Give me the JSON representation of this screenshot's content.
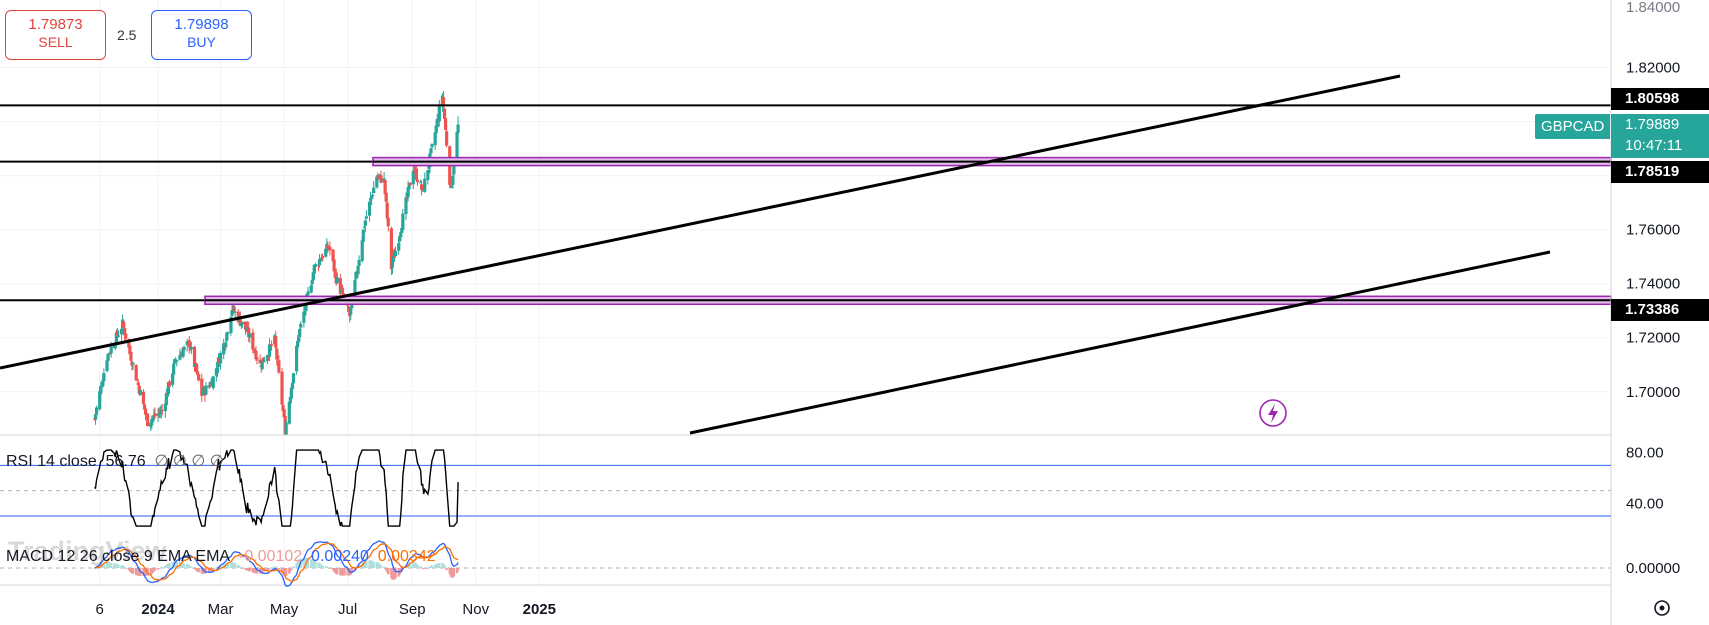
{
  "trade_panel": {
    "sell_price": "1.79873",
    "sell_label": "SELL",
    "spread": "2.5",
    "buy_price": "1.79898",
    "buy_label": "BUY"
  },
  "symbol": {
    "ticker": "GBPCAD",
    "last_price": "1.79889",
    "countdown": "10:47:11"
  },
  "price_lines": [
    {
      "label": "1.80598",
      "value": 1.80598
    },
    {
      "label": "1.78519",
      "value": 1.78519
    },
    {
      "label": "1.73386",
      "value": 1.73386
    }
  ],
  "time_axis": [
    "6",
    "2024",
    "Mar",
    "May",
    "Jul",
    "Sep",
    "Nov",
    "2025"
  ],
  "price_axis": {
    "top_partial": "1.84000",
    "ticks": [
      "1.82000",
      "1.80000",
      "1.78000",
      "1.76000",
      "1.74000",
      "1.72000",
      "1.70000"
    ]
  },
  "rsi": {
    "label": "RSI 14 close",
    "value": "56.76",
    "placeholders": "∅ ∅ ∅ ∅",
    "axis": [
      "80.00",
      "40.00"
    ],
    "upper_band": 70,
    "lower_band": 30
  },
  "macd": {
    "label": "MACD 12 26 close 9 EMA EMA",
    "histogram": "-0.00102",
    "macd": "0.00240",
    "signal": "0.00342",
    "axis": [
      "0.00000"
    ]
  },
  "watermark": "TradingView",
  "colors": {
    "up": "#26a69a",
    "down": "#ef5350",
    "zone": "#9c27b0",
    "macd_line": "#2962ff",
    "signal_line": "#ff6d00",
    "sell": "#e0443d",
    "buy": "#2962ff"
  },
  "chart_data": {
    "type": "candlestick",
    "symbol": "GBPCAD",
    "timeframe": "daily",
    "ylim": [
      1.684,
      1.845
    ],
    "dates": [
      "2023-11-01",
      "2024-10-15"
    ],
    "price_path_keypoints": [
      {
        "date": "2023-11-01",
        "close": 1.69
      },
      {
        "date": "2023-11-13",
        "close": 1.713
      },
      {
        "date": "2023-11-28",
        "close": 1.725
      },
      {
        "date": "2023-12-12",
        "close": 1.704
      },
      {
        "date": "2023-12-22",
        "close": 1.689
      },
      {
        "date": "2024-01-05",
        "close": 1.693
      },
      {
        "date": "2024-01-18",
        "close": 1.712
      },
      {
        "date": "2024-01-31",
        "close": 1.718
      },
      {
        "date": "2024-02-12",
        "close": 1.699
      },
      {
        "date": "2024-02-22",
        "close": 1.704
      },
      {
        "date": "2024-03-06",
        "close": 1.72
      },
      {
        "date": "2024-03-12",
        "close": 1.731
      },
      {
        "date": "2024-03-27",
        "close": 1.722
      },
      {
        "date": "2024-04-08",
        "close": 1.71
      },
      {
        "date": "2024-04-22",
        "close": 1.719
      },
      {
        "date": "2024-05-02",
        "close": 1.686
      },
      {
        "date": "2024-05-15",
        "close": 1.721
      },
      {
        "date": "2024-05-30",
        "close": 1.746
      },
      {
        "date": "2024-06-13",
        "close": 1.754
      },
      {
        "date": "2024-06-20",
        "close": 1.742
      },
      {
        "date": "2024-07-03",
        "close": 1.728
      },
      {
        "date": "2024-07-17",
        "close": 1.762
      },
      {
        "date": "2024-07-29",
        "close": 1.78
      },
      {
        "date": "2024-08-05",
        "close": 1.778
      },
      {
        "date": "2024-08-12",
        "close": 1.746
      },
      {
        "date": "2024-08-19",
        "close": 1.757
      },
      {
        "date": "2024-09-02",
        "close": 1.783
      },
      {
        "date": "2024-09-11",
        "close": 1.774
      },
      {
        "date": "2024-09-20",
        "close": 1.79
      },
      {
        "date": "2024-09-30",
        "close": 1.81
      },
      {
        "date": "2024-10-08",
        "close": 1.774
      },
      {
        "date": "2024-10-15",
        "close": 1.7989
      }
    ]
  }
}
